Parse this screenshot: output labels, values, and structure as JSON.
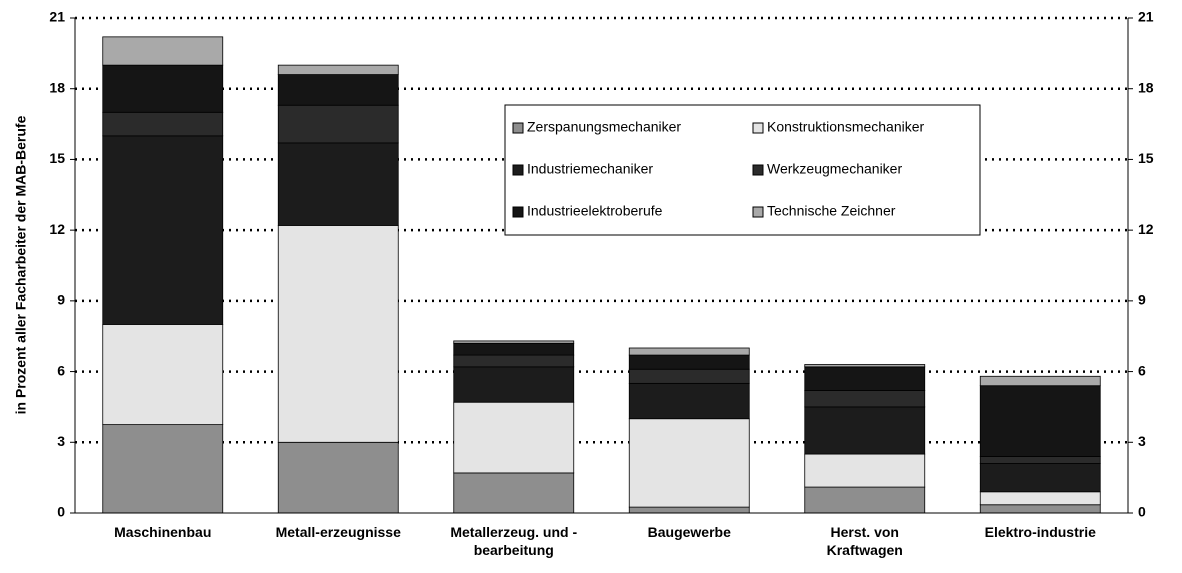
{
  "chart_data": {
    "type": "stacked_bar",
    "y_label": "in Prozent aller Facharbeiter der MAB-Berufe",
    "categories": [
      "Maschinenbau",
      "Metall-erzeugnisse",
      "Metallerzeug. und - bearbeitung",
      "Baugewerbe",
      "Herst. von Kraftwagen",
      "Elektro-industrie"
    ],
    "series": [
      {
        "name": "Zerspanungsmechaniker",
        "color": "#8e8e8e",
        "values": [
          3.75,
          3.0,
          1.7,
          0.25,
          1.1,
          0.35
        ]
      },
      {
        "name": "Konstruktionsmechaniker",
        "color": "#e4e4e4",
        "values": [
          4.25,
          9.2,
          3.0,
          3.75,
          1.4,
          0.55
        ]
      },
      {
        "name": "Industriemechaniker",
        "color": "#1c1c1c",
        "values": [
          8.0,
          3.5,
          1.5,
          1.5,
          2.0,
          1.2
        ]
      },
      {
        "name": "Werkzeugmechaniker",
        "color": "#2b2b2b",
        "values": [
          1.0,
          1.6,
          0.5,
          0.6,
          0.7,
          0.3
        ]
      },
      {
        "name": "Industrieelektroberufe",
        "color": "#151515",
        "values": [
          2.0,
          1.3,
          0.5,
          0.6,
          1.0,
          3.0
        ]
      },
      {
        "name": "Technische Zeichner",
        "color": "#a9a9a9",
        "values": [
          1.2,
          0.4,
          0.1,
          0.3,
          0.1,
          0.4
        ]
      }
    ],
    "ylim": [
      0,
      21
    ],
    "yticks": [
      0,
      3,
      6,
      9,
      12,
      15,
      18,
      21
    ],
    "grid": true,
    "right_axis": true
  }
}
